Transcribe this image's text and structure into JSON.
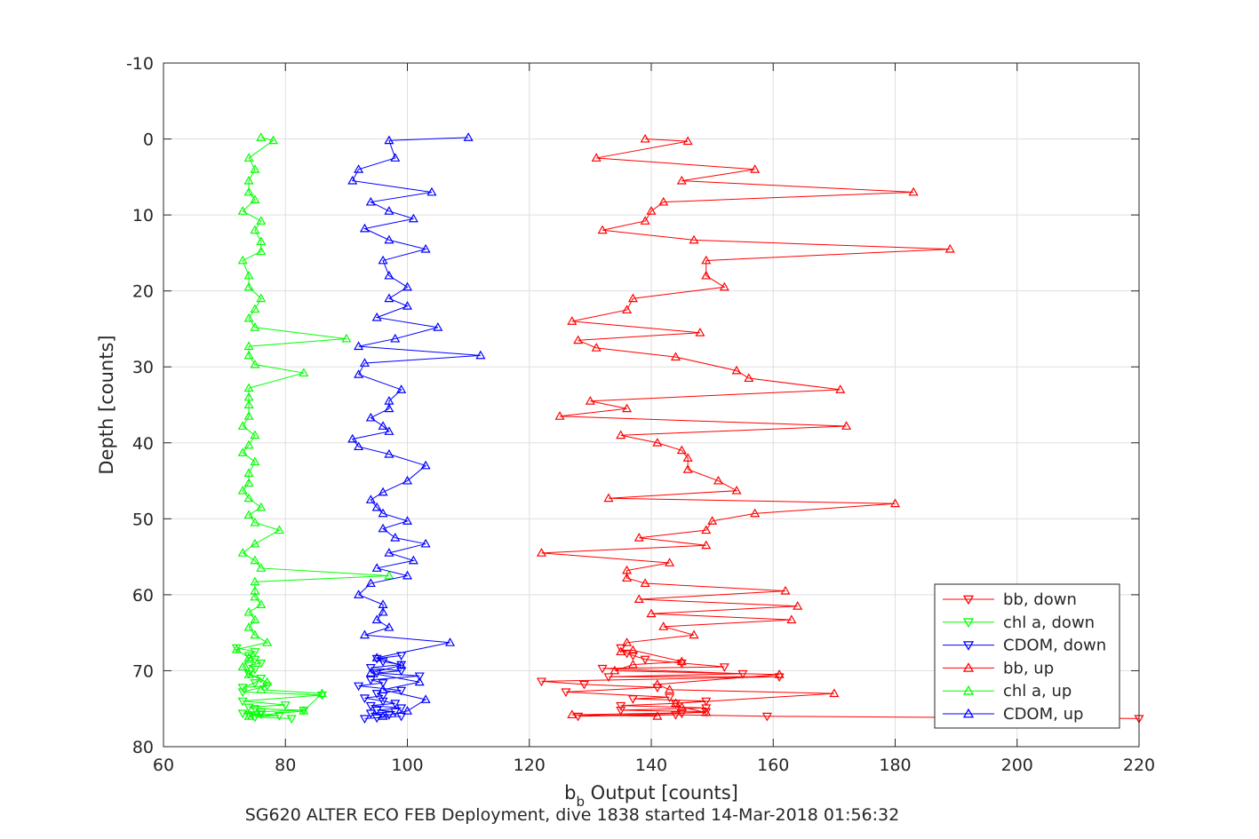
{
  "chart_data": {
    "type": "line",
    "x_axis": {
      "label_main": "b",
      "label_sub": "b",
      "label_rest": " Output [counts]",
      "lim": [
        60,
        220
      ],
      "ticks": [
        "60",
        "80",
        "100",
        "120",
        "140",
        "160",
        "180",
        "200",
        "220"
      ]
    },
    "y_axis": {
      "label": "Depth [counts]",
      "lim": [
        -10,
        80
      ],
      "reversed": true,
      "ticks": [
        "-10",
        "0",
        "10",
        "20",
        "30",
        "40",
        "50",
        "60",
        "70",
        "80"
      ]
    },
    "grid": true,
    "caption": "SG620 ALTER ECO FEB Deployment, dive 1838 started 14-Mar-2018 01:56:32",
    "legend_position": "bottom-right",
    "series": [
      {
        "name": "bb, down",
        "color": "#ff0000",
        "marker": "triangle-down",
        "points": [
          [
            220,
            76.3
          ],
          [
            159,
            76
          ],
          [
            144,
            75.8
          ],
          [
            128,
            76
          ],
          [
            145,
            75.6
          ],
          [
            149,
            75.4
          ],
          [
            135,
            75.2
          ],
          [
            149,
            74.9
          ],
          [
            135,
            74.6
          ],
          [
            144,
            74.3
          ],
          [
            149,
            74
          ],
          [
            137,
            73.7
          ],
          [
            143,
            73.5
          ],
          [
            126,
            72.8
          ],
          [
            141,
            72.2
          ],
          [
            129,
            71.8
          ],
          [
            122,
            71.4
          ],
          [
            161,
            70.8
          ],
          [
            133,
            70.8
          ],
          [
            155,
            70.4
          ],
          [
            132,
            69.7
          ],
          [
            152,
            69.5
          ],
          [
            145,
            69
          ],
          [
            139,
            68.5
          ],
          [
            137,
            68
          ],
          [
            136,
            67.7
          ],
          [
            135,
            67
          ]
        ]
      },
      {
        "name": "chl a, down",
        "color": "#00ff00",
        "marker": "triangle-down",
        "points": [
          [
            81,
            76.3
          ],
          [
            75,
            76.1
          ],
          [
            79,
            75.9
          ],
          [
            74,
            75.8
          ],
          [
            76,
            75.7
          ],
          [
            73,
            75.6
          ],
          [
            76,
            75.4
          ],
          [
            83,
            75.2
          ],
          [
            75,
            75
          ],
          [
            74,
            74.8
          ],
          [
            80,
            74.5
          ],
          [
            73,
            74
          ],
          [
            86,
            73.2
          ],
          [
            73,
            72.8
          ],
          [
            77,
            72
          ],
          [
            73,
            72.2
          ],
          [
            75,
            71.6
          ],
          [
            76,
            71
          ],
          [
            74,
            70.4
          ],
          [
            75,
            69.8
          ],
          [
            74,
            69.3
          ],
          [
            76,
            69
          ],
          [
            75,
            68.5
          ],
          [
            74,
            68
          ],
          [
            75,
            67.5
          ],
          [
            72,
            67
          ]
        ]
      },
      {
        "name": "CDOM, down",
        "color": "#0000ff",
        "marker": "triangle-down",
        "points": [
          [
            93,
            76.3
          ],
          [
            99,
            76
          ],
          [
            95,
            76.2
          ],
          [
            97,
            75.8
          ],
          [
            94,
            75.6
          ],
          [
            98,
            75.4
          ],
          [
            95,
            75.2
          ],
          [
            99,
            74.9
          ],
          [
            94,
            74.6
          ],
          [
            98,
            74.3
          ],
          [
            96,
            74
          ],
          [
            93,
            73.6
          ],
          [
            96,
            73.3
          ],
          [
            95,
            73
          ],
          [
            99,
            72.6
          ],
          [
            92,
            72
          ],
          [
            96,
            71.6
          ],
          [
            94,
            71.2
          ],
          [
            102,
            70.7
          ],
          [
            95,
            70.3
          ],
          [
            99,
            70
          ],
          [
            94,
            69.6
          ],
          [
            99,
            69.2
          ],
          [
            96,
            68.8
          ],
          [
            95,
            68.4
          ],
          [
            99,
            68
          ]
        ]
      },
      {
        "name": "bb, up",
        "color": "#ff0000",
        "marker": "triangle-up",
        "points": [
          [
            141,
            76
          ],
          [
            127,
            75.8
          ],
          [
            149,
            75.5
          ],
          [
            145,
            74.8
          ],
          [
            144,
            74.3
          ],
          [
            170,
            73
          ],
          [
            143,
            72.5
          ],
          [
            141,
            71.8
          ],
          [
            161,
            70.5
          ],
          [
            134,
            70
          ],
          [
            137,
            69.2
          ],
          [
            145,
            68.8
          ],
          [
            137,
            67.3
          ],
          [
            135,
            67.5
          ],
          [
            136,
            66.3
          ],
          [
            147,
            65.3
          ],
          [
            142,
            64.2
          ],
          [
            163,
            63.3
          ],
          [
            140,
            62.5
          ],
          [
            164,
            61.5
          ],
          [
            138,
            60.6
          ],
          [
            162,
            59.5
          ],
          [
            139,
            58.5
          ],
          [
            136,
            57.8
          ],
          [
            136,
            56.8
          ],
          [
            143,
            55.8
          ],
          [
            122,
            54.5
          ],
          [
            149,
            53.5
          ],
          [
            138,
            52.5
          ],
          [
            149,
            51.5
          ],
          [
            150,
            50.3
          ],
          [
            157,
            49.3
          ],
          [
            180,
            48
          ],
          [
            133,
            47.3
          ],
          [
            154,
            46.3
          ],
          [
            151,
            45
          ],
          [
            146,
            43.5
          ],
          [
            146,
            42
          ],
          [
            145,
            41
          ],
          [
            141,
            40
          ],
          [
            135,
            39
          ],
          [
            172,
            37.8
          ],
          [
            125,
            36.5
          ],
          [
            136,
            35.5
          ],
          [
            130,
            34.5
          ],
          [
            171,
            33
          ],
          [
            156,
            31.5
          ],
          [
            154,
            30.5
          ],
          [
            144,
            28.7
          ],
          [
            131,
            27.5
          ],
          [
            128,
            26.5
          ],
          [
            148,
            25.5
          ],
          [
            127,
            24
          ],
          [
            136,
            22.5
          ],
          [
            137,
            21
          ],
          [
            152,
            19.5
          ],
          [
            149,
            18
          ],
          [
            149,
            16
          ],
          [
            189,
            14.5
          ],
          [
            147,
            13.3
          ],
          [
            132,
            12
          ],
          [
            139,
            10.8
          ],
          [
            140,
            9.5
          ],
          [
            142,
            8.3
          ],
          [
            183,
            7
          ],
          [
            145,
            5.5
          ],
          [
            157,
            4
          ],
          [
            131,
            2.5
          ],
          [
            146,
            0.3
          ],
          [
            139,
            0
          ]
        ]
      },
      {
        "name": "chl a, up",
        "color": "#00ff00",
        "marker": "triangle-up",
        "points": [
          [
            74,
            76
          ],
          [
            83,
            75.3
          ],
          [
            86,
            73
          ],
          [
            76,
            72.5
          ],
          [
            77,
            71.5
          ],
          [
            74,
            70.5
          ],
          [
            73,
            69.5
          ],
          [
            74,
            68.3
          ],
          [
            72,
            67.2
          ],
          [
            77,
            66.3
          ],
          [
            75,
            65.3
          ],
          [
            74,
            64.3
          ],
          [
            75,
            63.3
          ],
          [
            74,
            62.3
          ],
          [
            76,
            61.3
          ],
          [
            75,
            60.3
          ],
          [
            75,
            59.5
          ],
          [
            75,
            58.3
          ],
          [
            97,
            57.5
          ],
          [
            76,
            56.5
          ],
          [
            75,
            55.5
          ],
          [
            73,
            54.5
          ],
          [
            75,
            53.3
          ],
          [
            79,
            51.5
          ],
          [
            75,
            50.5
          ],
          [
            74,
            49.5
          ],
          [
            76,
            48.5
          ],
          [
            74,
            47.3
          ],
          [
            73,
            46.3
          ],
          [
            74,
            45.3
          ],
          [
            74,
            44
          ],
          [
            75,
            42.5
          ],
          [
            73,
            41.3
          ],
          [
            74,
            40.3
          ],
          [
            75,
            39
          ],
          [
            73,
            37.8
          ],
          [
            74,
            36.5
          ],
          [
            74,
            35
          ],
          [
            74,
            34
          ],
          [
            74,
            32.8
          ],
          [
            83,
            30.8
          ],
          [
            75,
            29.7
          ],
          [
            74,
            28.5
          ],
          [
            74,
            27.3
          ],
          [
            90,
            26.3
          ],
          [
            75,
            24.8
          ],
          [
            74,
            23.6
          ],
          [
            75,
            22.4
          ],
          [
            76,
            21
          ],
          [
            74,
            19.5
          ],
          [
            74,
            18
          ],
          [
            73,
            16
          ],
          [
            76,
            14.8
          ],
          [
            76,
            13.5
          ],
          [
            75,
            12
          ],
          [
            76,
            10.8
          ],
          [
            73,
            9.5
          ],
          [
            75,
            8
          ],
          [
            74,
            7
          ],
          [
            74,
            5.5
          ],
          [
            75,
            4
          ],
          [
            74,
            2.5
          ],
          [
            78,
            0.2
          ],
          [
            76,
            -0.2
          ]
        ]
      },
      {
        "name": "CDOM, up",
        "color": "#0000ff",
        "marker": "triangle-up",
        "points": [
          [
            96,
            76
          ],
          [
            100,
            75.3
          ],
          [
            103,
            73.8
          ],
          [
            96,
            72.5
          ],
          [
            102,
            71.5
          ],
          [
            94,
            70.3
          ],
          [
            99,
            69.3
          ],
          [
            95,
            68.3
          ],
          [
            107,
            66.3
          ],
          [
            93,
            65.3
          ],
          [
            97,
            64.3
          ],
          [
            95,
            63.3
          ],
          [
            96,
            62.3
          ],
          [
            96,
            61.3
          ],
          [
            92,
            60
          ],
          [
            94,
            58.5
          ],
          [
            100,
            57.5
          ],
          [
            95,
            56.5
          ],
          [
            101,
            55.5
          ],
          [
            97,
            54.5
          ],
          [
            103,
            53.3
          ],
          [
            98,
            52.5
          ],
          [
            96,
            51.3
          ],
          [
            100,
            50.3
          ],
          [
            96,
            49.3
          ],
          [
            95,
            48.5
          ],
          [
            94,
            47.5
          ],
          [
            96,
            46.5
          ],
          [
            100,
            45
          ],
          [
            103,
            43
          ],
          [
            97,
            41.5
          ],
          [
            92,
            40.5
          ],
          [
            91,
            39.5
          ],
          [
            97,
            38.5
          ],
          [
            96,
            37.8
          ],
          [
            94,
            36.7
          ],
          [
            97,
            35.5
          ],
          [
            97,
            34.5
          ],
          [
            99,
            33
          ],
          [
            92,
            31
          ],
          [
            93,
            29.5
          ],
          [
            112,
            28.5
          ],
          [
            92,
            27.3
          ],
          [
            98,
            26.3
          ],
          [
            105,
            24.8
          ],
          [
            95,
            23.5
          ],
          [
            100,
            22
          ],
          [
            97,
            21
          ],
          [
            100,
            19.5
          ],
          [
            97,
            18
          ],
          [
            96,
            16
          ],
          [
            103,
            14.5
          ],
          [
            97,
            13.3
          ],
          [
            93,
            11.8
          ],
          [
            101,
            10.5
          ],
          [
            97,
            9.5
          ],
          [
            94,
            8.3
          ],
          [
            104,
            7
          ],
          [
            91,
            5.5
          ],
          [
            92,
            4
          ],
          [
            98,
            2.5
          ],
          [
            97,
            0.2
          ],
          [
            110,
            -0.2
          ]
        ]
      }
    ]
  }
}
